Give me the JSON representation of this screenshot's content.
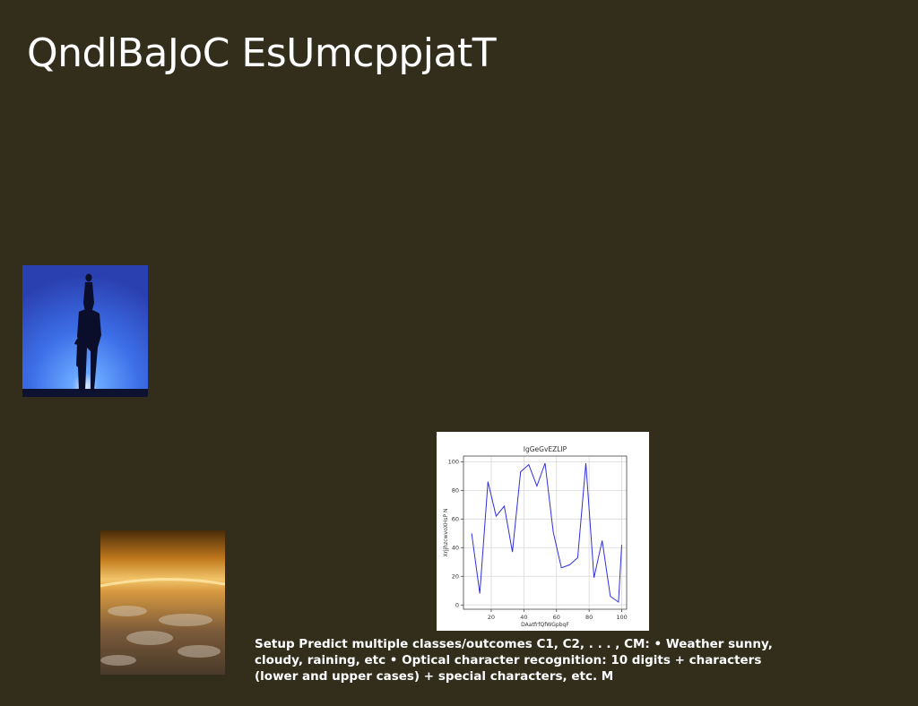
{
  "slide": {
    "title": "QndlBaJoC EsUmcppjatT",
    "body": "Setup Predict multiple classes/outcomes C1, C2, . . . , CM: • Weather sunny, cloudy, raining, etc • Optical character recognition: 10 digits + characters (lower and upper cases) + special characters, etc. M"
  },
  "images": {
    "rider": "silhouette-of-horse-rider-on-blue-sky",
    "earth": "earth-horizon-from-space-orange-glow"
  },
  "chart_data": {
    "type": "line",
    "title": "IgGeGvEZLIP",
    "xlabel": "DAatfrfQfWGpbqF",
    "ylabel": "XrjjhzcwvoXHsP N",
    "x": [
      8,
      13,
      18,
      23,
      28,
      33,
      38,
      43,
      48,
      53,
      58,
      63,
      68,
      73,
      78,
      83,
      88,
      93,
      98
    ],
    "series": [
      {
        "values": [
          50,
          8,
          86,
          62,
          69,
          37,
          93,
          98,
          83,
          99,
          51,
          26,
          28,
          33,
          99,
          19,
          45,
          6,
          2
        ]
      }
    ],
    "x_extra": [
      100
    ],
    "y_extra": [
      42
    ],
    "xticks": [
      20,
      40,
      60,
      80,
      100
    ],
    "yticks": [
      0,
      20,
      40,
      60,
      80,
      100
    ],
    "xlim": [
      3,
      103
    ],
    "ylim": [
      -3,
      104
    ],
    "grid": true,
    "line_color": "#2f2fe0"
  }
}
